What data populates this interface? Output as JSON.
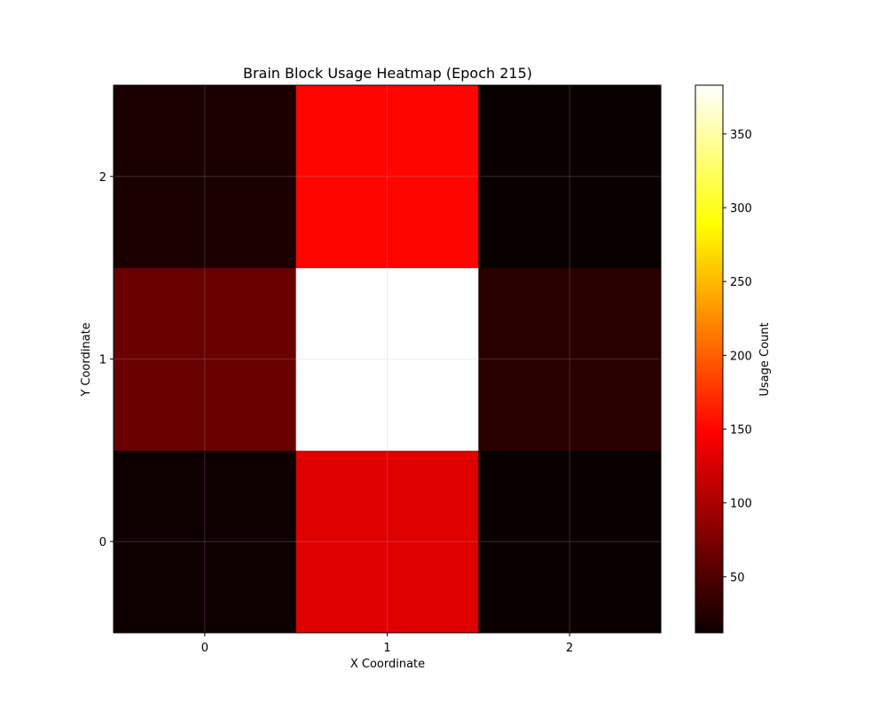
{
  "chart_data": {
    "type": "heatmap",
    "title": "Brain Block Usage Heatmap (Epoch 215)",
    "xlabel": "X Coordinate",
    "ylabel": "Y Coordinate",
    "x_ticks": [
      "0",
      "1",
      "2"
    ],
    "y_ticks": [
      "0",
      "1",
      "2"
    ],
    "colormap": "hot",
    "grid": true,
    "values_by_row_y": [
      [
        14,
        125,
        12
      ],
      [
        62,
        383,
        28
      ],
      [
        20,
        150,
        12
      ]
    ],
    "colorbar": {
      "label": "Usage Count",
      "range": [
        12,
        383
      ],
      "ticks": [
        50,
        100,
        150,
        200,
        250,
        300,
        350
      ]
    }
  }
}
